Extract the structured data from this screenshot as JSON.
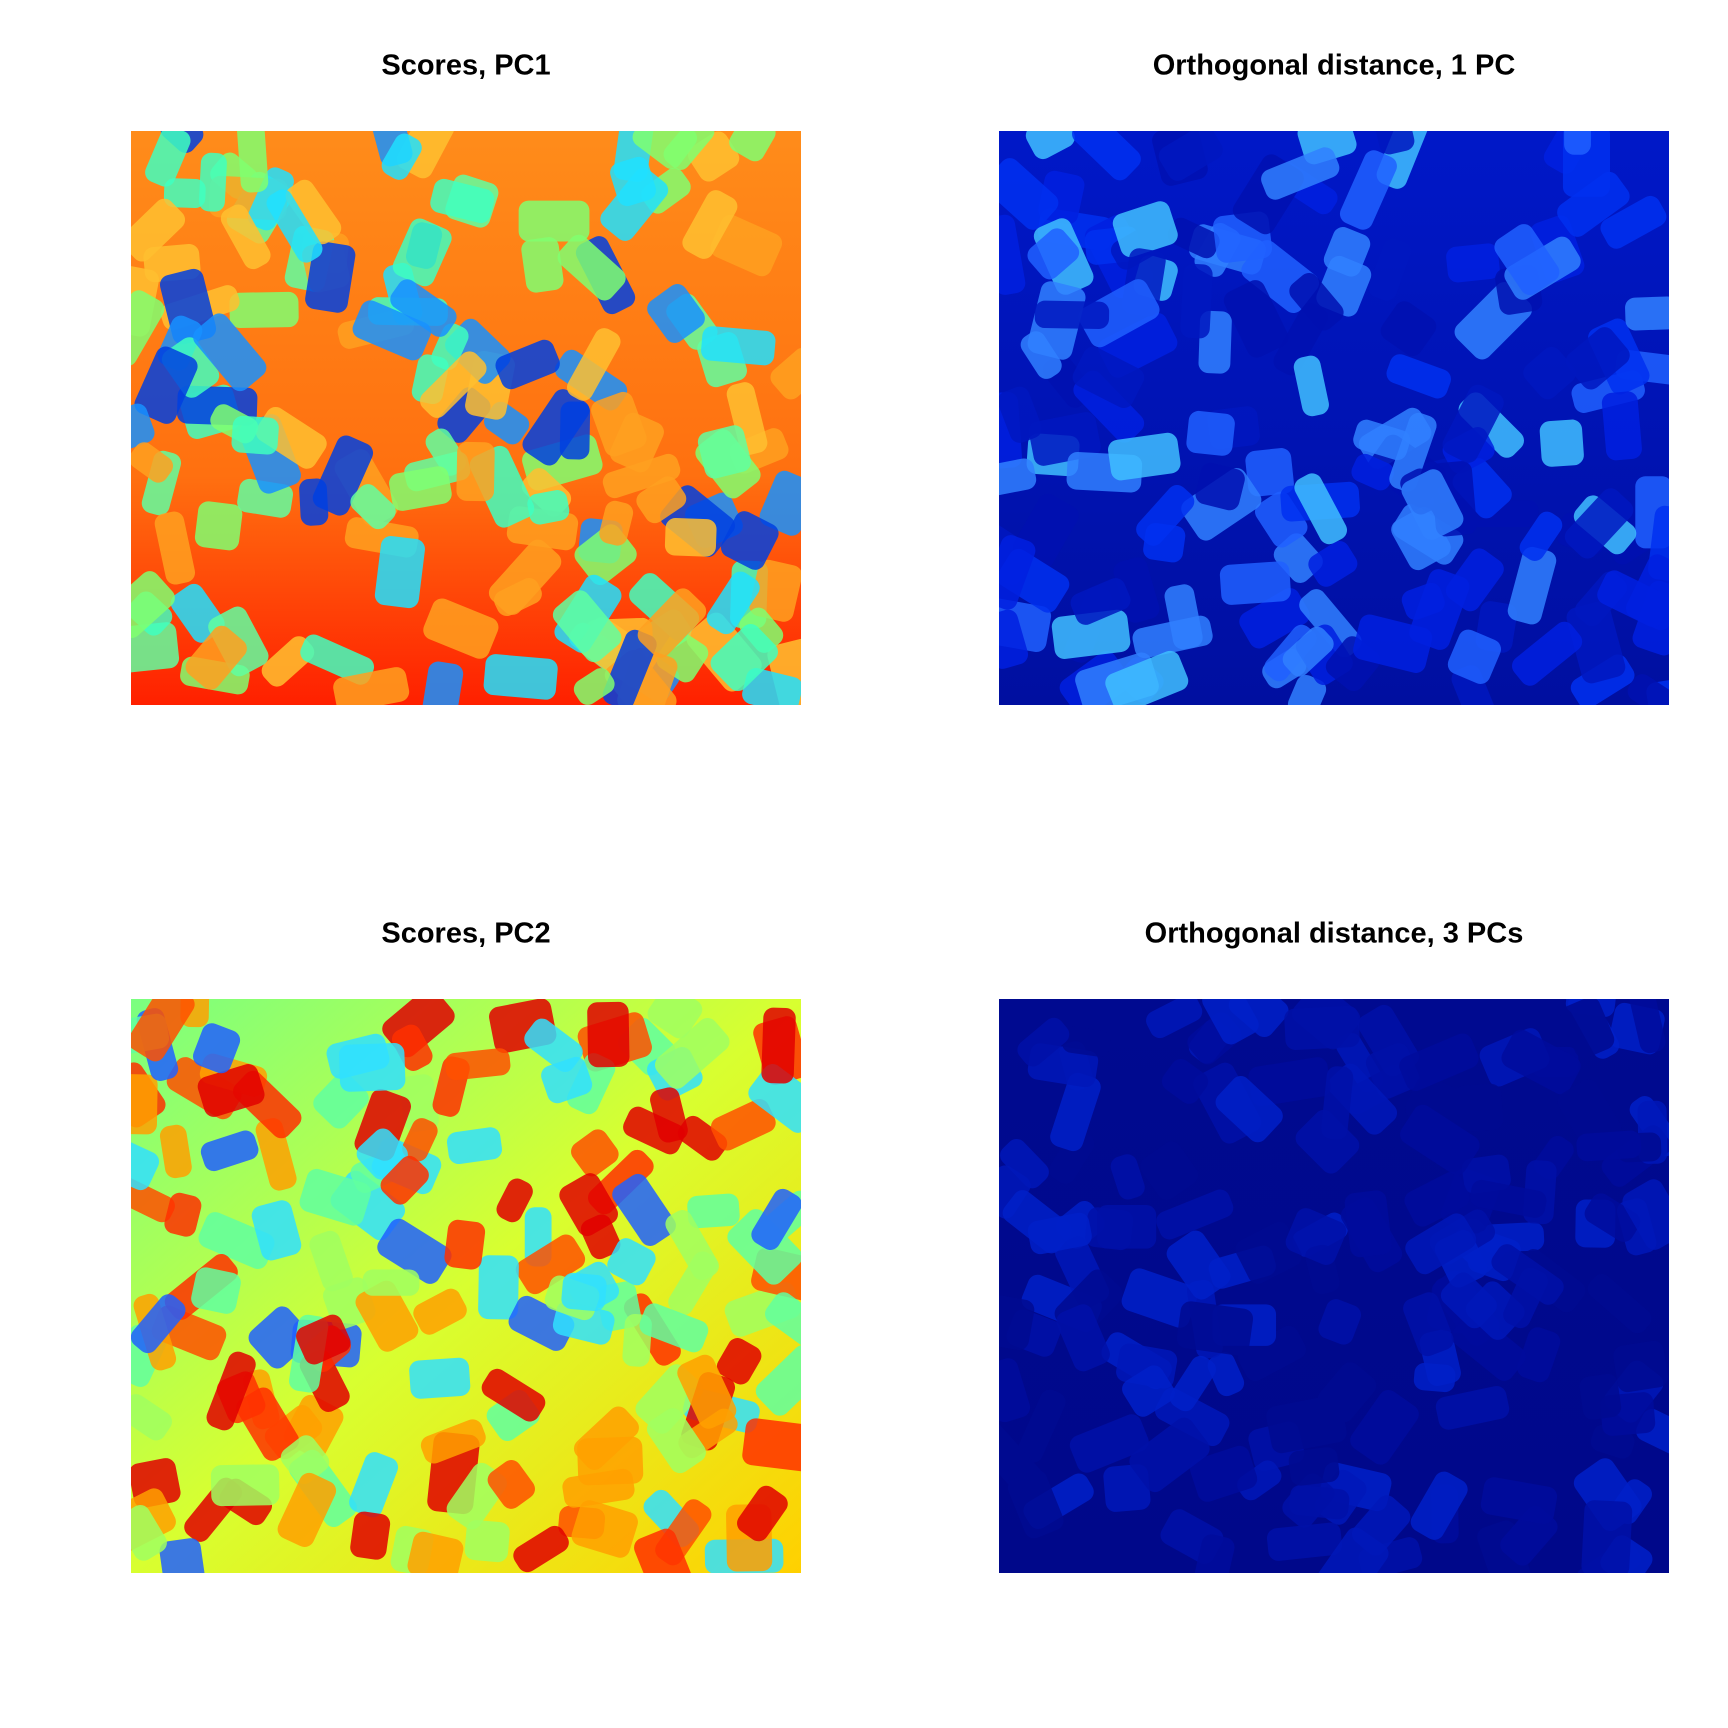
{
  "chart_data": [
    {
      "type": "image",
      "title": "Scores, PC1"
    },
    {
      "type": "image",
      "title": "Orthogonal distance, 1 PC"
    },
    {
      "type": "image",
      "title": "Scores, PC2"
    },
    {
      "type": "image",
      "title": "Orthogonal distance, 3 PCs"
    }
  ]
}
